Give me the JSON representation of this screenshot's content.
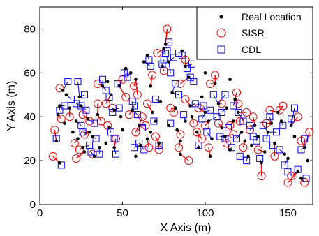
{
  "chart_data": {
    "type": "scatter",
    "xlabel": "X Axis (m)",
    "ylabel": "Y Axis (m)",
    "xlim": [
      0,
      165
    ],
    "ylim": [
      0,
      90
    ],
    "xticks": [
      "0",
      "50",
      "100",
      "150"
    ],
    "yticks": [
      "0",
      "20",
      "40",
      "60",
      "80"
    ],
    "grid": false,
    "legend_position": "top-right",
    "legend": [
      "Real Location",
      "SISR",
      "CDL"
    ],
    "colors": {
      "real": "#000000",
      "sisr": "#ff0000",
      "cdl": "#0000ff"
    },
    "series": [
      {
        "name": "Real Location",
        "marker": "dot",
        "points": [
          [
            10,
            29
          ],
          [
            12,
            19
          ],
          [
            11,
            41
          ],
          [
            12,
            45
          ],
          [
            14,
            52
          ],
          [
            16,
            50
          ],
          [
            18,
            44
          ],
          [
            15,
            37
          ],
          [
            20,
            33
          ],
          [
            22,
            38
          ],
          [
            24,
            49
          ],
          [
            25,
            45
          ],
          [
            23,
            30
          ],
          [
            26,
            26
          ],
          [
            27,
            24
          ],
          [
            29,
            39
          ],
          [
            30,
            33
          ],
          [
            32,
            31
          ],
          [
            33,
            22
          ],
          [
            35,
            41
          ],
          [
            36,
            26
          ],
          [
            38,
            54
          ],
          [
            41,
            56
          ],
          [
            43,
            50
          ],
          [
            45,
            43
          ],
          [
            42,
            35
          ],
          [
            40,
            28
          ],
          [
            48,
            54
          ],
          [
            49,
            40
          ],
          [
            50,
            34
          ],
          [
            52,
            62
          ],
          [
            55,
            60
          ],
          [
            58,
            57
          ],
          [
            56,
            43
          ],
          [
            60,
            36
          ],
          [
            61,
            27
          ],
          [
            63,
            65
          ],
          [
            65,
            68
          ],
          [
            67,
            54
          ],
          [
            68,
            42
          ],
          [
            70,
            38
          ],
          [
            72,
            28
          ],
          [
            73,
            47
          ],
          [
            74,
            63
          ],
          [
            75,
            71
          ],
          [
            76,
            73
          ],
          [
            78,
            65
          ],
          [
            80,
            51
          ],
          [
            82,
            44
          ],
          [
            83,
            34
          ],
          [
            85,
            29
          ],
          [
            86,
            70
          ],
          [
            88,
            63
          ],
          [
            90,
            58
          ],
          [
            91,
            45
          ],
          [
            92,
            40
          ],
          [
            95,
            33
          ],
          [
            96,
            26
          ],
          [
            98,
            49
          ],
          [
            100,
            42
          ],
          [
            102,
            38
          ],
          [
            104,
            30
          ],
          [
            106,
            55
          ],
          [
            108,
            46
          ],
          [
            110,
            35
          ],
          [
            112,
            31
          ],
          [
            113,
            44
          ],
          [
            115,
            25
          ],
          [
            117,
            38
          ],
          [
            118,
            48
          ],
          [
            120,
            42
          ],
          [
            122,
            33
          ],
          [
            124,
            29
          ],
          [
            126,
            22
          ],
          [
            128,
            27
          ],
          [
            130,
            36
          ],
          [
            132,
            31
          ],
          [
            134,
            19
          ],
          [
            136,
            24
          ],
          [
            138,
            33
          ],
          [
            140,
            37
          ],
          [
            142,
            28
          ],
          [
            144,
            42
          ],
          [
            146,
            38
          ],
          [
            148,
            23
          ],
          [
            150,
            21
          ],
          [
            152,
            36
          ],
          [
            154,
            31
          ],
          [
            156,
            15
          ],
          [
            158,
            12
          ],
          [
            160,
            26
          ],
          [
            162,
            20
          ],
          [
            85,
            23
          ],
          [
            78,
            36
          ],
          [
            65,
            30
          ],
          [
            58,
            22
          ],
          [
            103,
            22
          ],
          [
            115,
            57
          ],
          [
            100,
            60
          ],
          [
            67,
            33
          ],
          [
            88,
            38
          ],
          [
            45,
            26
          ]
        ]
      },
      {
        "name": "SISR",
        "marker": "circle",
        "points": [
          [
            8,
            22
          ],
          [
            9,
            34
          ],
          [
            12,
            53
          ],
          [
            13,
            39
          ],
          [
            18,
            40
          ],
          [
            21,
            28
          ],
          [
            22,
            21
          ],
          [
            26,
            41
          ],
          [
            27,
            32
          ],
          [
            30,
            38
          ],
          [
            32,
            23
          ],
          [
            35,
            55
          ],
          [
            37,
            38
          ],
          [
            40,
            46
          ],
          [
            44,
            44
          ],
          [
            46,
            30
          ],
          [
            50,
            57
          ],
          [
            52,
            49
          ],
          [
            54,
            41
          ],
          [
            57,
            54
          ],
          [
            59,
            50
          ],
          [
            62,
            40
          ],
          [
            64,
            36
          ],
          [
            65,
            46
          ],
          [
            68,
            59
          ],
          [
            70,
            31
          ],
          [
            72,
            25
          ],
          [
            75,
            61
          ],
          [
            77,
            80
          ],
          [
            79,
            44
          ],
          [
            81,
            42
          ],
          [
            84,
            26
          ],
          [
            85,
            55
          ],
          [
            88,
            48
          ],
          [
            90,
            20
          ],
          [
            93,
            37
          ],
          [
            96,
            44
          ],
          [
            98,
            30
          ],
          [
            100,
            36
          ],
          [
            103,
            55
          ],
          [
            106,
            59
          ],
          [
            108,
            37
          ],
          [
            110,
            46
          ],
          [
            113,
            28
          ],
          [
            115,
            36
          ],
          [
            117,
            32
          ],
          [
            119,
            51
          ],
          [
            121,
            38
          ],
          [
            123,
            26
          ],
          [
            125,
            42
          ],
          [
            127,
            34
          ],
          [
            129,
            40
          ],
          [
            132,
            25
          ],
          [
            134,
            13
          ],
          [
            137,
            37
          ],
          [
            139,
            43
          ],
          [
            142,
            22
          ],
          [
            145,
            43
          ],
          [
            147,
            45
          ],
          [
            150,
            10
          ],
          [
            152,
            13
          ],
          [
            156,
            40
          ],
          [
            158,
            29
          ],
          [
            160,
            10
          ],
          [
            163,
            33
          ],
          [
            71,
            69
          ],
          [
            58,
            33
          ],
          [
            95,
            33
          ],
          [
            85,
            32
          ],
          [
            41,
            36
          ],
          [
            35,
            46
          ],
          [
            66,
            26
          ],
          [
            102,
            26
          ],
          [
            120,
            46
          ],
          [
            88,
            66
          ],
          [
            24,
            25
          ]
        ]
      },
      {
        "name": "CDL",
        "marker": "square",
        "points": [
          [
            10,
            30
          ],
          [
            13,
            18
          ],
          [
            12,
            43
          ],
          [
            15,
            45
          ],
          [
            17,
            56
          ],
          [
            19,
            48
          ],
          [
            22,
            46
          ],
          [
            23,
            56
          ],
          [
            25,
            36
          ],
          [
            26,
            33
          ],
          [
            27,
            50
          ],
          [
            28,
            43
          ],
          [
            30,
            27
          ],
          [
            31,
            24
          ],
          [
            33,
            37
          ],
          [
            34,
            30
          ],
          [
            36,
            23
          ],
          [
            38,
            57
          ],
          [
            40,
            52
          ],
          [
            42,
            49
          ],
          [
            43,
            33
          ],
          [
            44,
            42
          ],
          [
            46,
            23
          ],
          [
            47,
            55
          ],
          [
            48,
            44
          ],
          [
            51,
            60
          ],
          [
            53,
            58
          ],
          [
            56,
            47
          ],
          [
            57,
            45
          ],
          [
            59,
            41
          ],
          [
            60,
            28
          ],
          [
            62,
            35
          ],
          [
            63,
            25
          ],
          [
            66,
            66
          ],
          [
            67,
            63
          ],
          [
            69,
            38
          ],
          [
            70,
            48
          ],
          [
            72,
            27
          ],
          [
            74,
            64
          ],
          [
            75,
            66
          ],
          [
            77,
            70
          ],
          [
            78,
            74
          ],
          [
            79,
            37
          ],
          [
            81,
            67
          ],
          [
            82,
            55
          ],
          [
            84,
            50
          ],
          [
            86,
            68
          ],
          [
            87,
            41
          ],
          [
            89,
            62
          ],
          [
            91,
            58
          ],
          [
            92,
            64
          ],
          [
            94,
            46
          ],
          [
            96,
            27
          ],
          [
            98,
            39
          ],
          [
            99,
            45
          ],
          [
            101,
            33
          ],
          [
            103,
            43
          ],
          [
            105,
            50
          ],
          [
            107,
            40
          ],
          [
            109,
            31
          ],
          [
            110,
            42
          ],
          [
            112,
            30
          ],
          [
            114,
            35
          ],
          [
            116,
            26
          ],
          [
            117,
            45
          ],
          [
            119,
            30
          ],
          [
            120,
            42
          ],
          [
            121,
            22
          ],
          [
            123,
            38
          ],
          [
            125,
            20
          ],
          [
            127,
            36
          ],
          [
            129,
            31
          ],
          [
            131,
            29
          ],
          [
            133,
            21
          ],
          [
            135,
            36
          ],
          [
            137,
            30
          ],
          [
            139,
            40
          ],
          [
            141,
            27
          ],
          [
            143,
            33
          ],
          [
            145,
            25
          ],
          [
            147,
            36
          ],
          [
            148,
            18
          ],
          [
            150,
            15
          ],
          [
            152,
            39
          ],
          [
            154,
            44
          ],
          [
            156,
            16
          ],
          [
            158,
            25
          ],
          [
            160,
            30
          ],
          [
            161,
            12
          ],
          [
            112,
            50
          ],
          [
            93,
            56
          ],
          [
            79,
            60
          ],
          [
            76,
            69
          ],
          [
            84,
            69
          ],
          [
            25,
            45
          ],
          [
            45,
            30
          ],
          [
            57,
            26
          ]
        ]
      }
    ]
  }
}
